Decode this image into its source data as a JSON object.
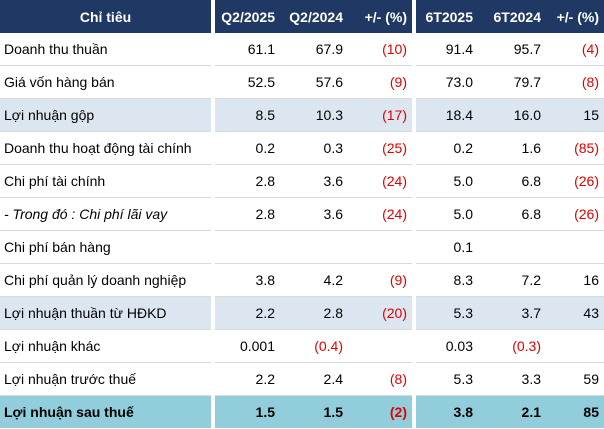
{
  "table": {
    "header": [
      "Chỉ tiêu",
      "Q2/2025",
      "Q2/2024",
      "+/- (%)",
      "6T2025",
      "6T2024",
      "+/- (%)"
    ],
    "rows": [
      [
        "Doanh thu thuần",
        "61.1",
        "67.9",
        "(10)",
        "91.4",
        "95.7",
        "(4)"
      ],
      [
        "Giá vốn hàng bán",
        "52.5",
        "57.6",
        "(9)",
        "73.0",
        "79.7",
        "(8)"
      ],
      [
        "Lợi nhuận gộp",
        "8.5",
        "10.3",
        "(17)",
        "18.4",
        "16.0",
        "15"
      ],
      [
        "Doanh thu hoạt động tài chính",
        "0.2",
        "0.3",
        "(25)",
        "0.2",
        "1.6",
        "(85)"
      ],
      [
        "Chi phí tài chính",
        "2.8",
        "3.6",
        "(24)",
        "5.0",
        "6.8",
        "(26)"
      ],
      [
        "- Trong đó : Chi phí lãi vay",
        "2.8",
        "3.6",
        "(24)",
        "5.0",
        "6.8",
        "(26)"
      ],
      [
        "Chi phí bán hàng",
        null,
        null,
        null,
        "0.1",
        null,
        null
      ],
      [
        "Chi phí quản lý doanh nghiệp",
        "3.8",
        "4.2",
        "(9)",
        "8.3",
        "7.2",
        "16"
      ],
      [
        "Lợi nhuận thuần từ HĐKD",
        "2.2",
        "2.8",
        "(20)",
        "5.3",
        "3.7",
        "43"
      ],
      [
        "Lợi nhuận khác",
        "0.001",
        "(0.4)",
        null,
        "0.03",
        "(0.3)",
        null
      ],
      [
        "Lợi nhuận trước thuế",
        "2.2",
        "2.4",
        "(8)",
        "5.3",
        "3.3",
        "59"
      ],
      [
        "Lợi nhuận sau thuế",
        "1.5",
        "1.5",
        "(2)",
        "3.8",
        "2.1",
        "85"
      ]
    ]
  }
}
